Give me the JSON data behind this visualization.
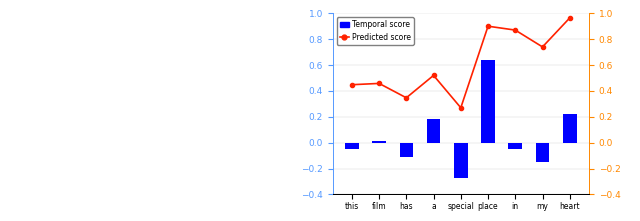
{
  "categories": [
    "this",
    "film",
    "has",
    "a",
    "special",
    "place",
    "in",
    "my",
    "heart"
  ],
  "temporal_scores": [
    -0.052,
    0.01,
    -0.11,
    0.18,
    -0.27,
    0.64,
    -0.05,
    -0.15,
    0.22
  ],
  "predicted_scores": [
    0.448,
    0.458,
    0.347,
    0.52,
    0.27,
    0.9,
    0.87,
    0.74,
    0.964
  ],
  "bar_color": "#0000FF",
  "line_color": "#FF2200",
  "left_axis_color": "#5599FF",
  "right_axis_color": "#FF8800",
  "ylim_left": [
    -0.4,
    1.0
  ],
  "ylim_right": [
    -0.4,
    1.0
  ],
  "yticks_left": [
    -0.4,
    -0.2,
    0.0,
    0.2,
    0.4,
    0.6,
    0.8,
    1.0
  ],
  "yticks_right": [
    -0.4,
    -0.2,
    0.0,
    0.2,
    0.4,
    0.6,
    0.8,
    1.0
  ],
  "legend_temporal": "Temporal score",
  "legend_predicted": "Predicted score",
  "figsize": [
    6.4,
    2.21
  ],
  "dpi": 100
}
